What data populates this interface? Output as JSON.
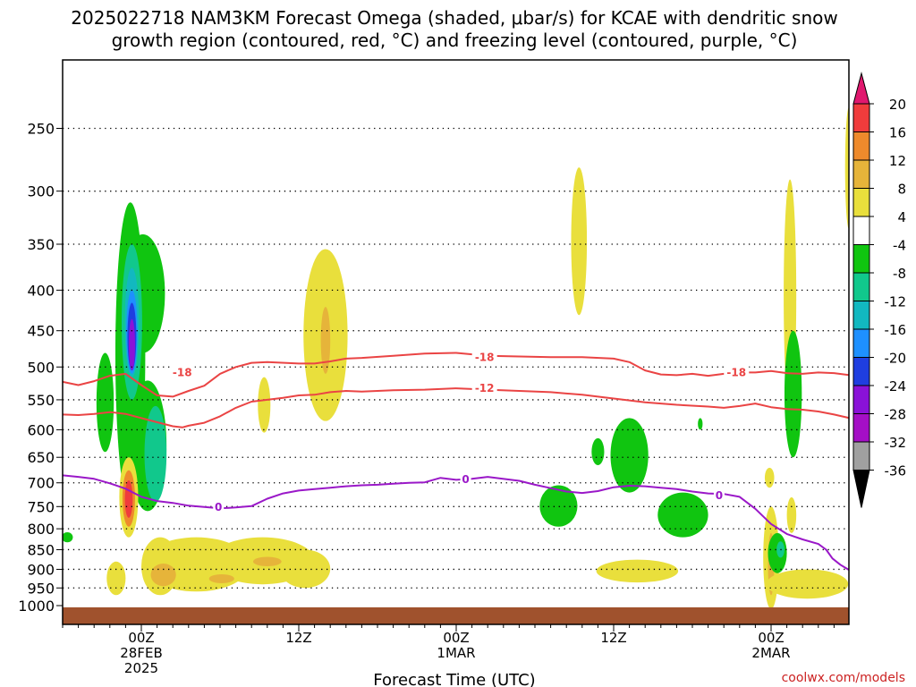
{
  "title_line1": "2025022718 NAM3KM Forecast Omega (shaded, μbar/s) for KCAE with dendritic snow",
  "title_line2": "growth region (contoured, red, °C) and freezing level (contoured, purple, °C)",
  "xlabel": "Forecast Time (UTC)",
  "watermark": "coolwx.com/models",
  "chart_data": {
    "type": "heatmap",
    "x_range_hours": [
      -5,
      45
    ],
    "y_axis": {
      "ticks": [
        250,
        300,
        350,
        400,
        450,
        500,
        550,
        600,
        650,
        700,
        750,
        800,
        850,
        900,
        950,
        1000
      ],
      "ylim": [
        1050,
        190
      ],
      "grid": true
    },
    "x_ticks": [
      {
        "h": 0,
        "lines": [
          "00Z",
          "28FEB",
          "2025"
        ]
      },
      {
        "h": 10,
        "lines": [
          "12Z"
        ]
      },
      {
        "h": 20,
        "lines": [
          "00Z",
          "1MAR"
        ]
      },
      {
        "h": 30,
        "lines": [
          "12Z"
        ]
      },
      {
        "h": 40,
        "lines": [
          "00Z",
          "2MAR"
        ]
      }
    ],
    "colorbar": {
      "levels": [
        "20",
        "16",
        "12",
        "8",
        "4",
        "-4",
        "-8",
        "-12",
        "-16",
        "-20",
        "-24",
        "-28",
        "-32",
        "-36"
      ],
      "colors": [
        "#e0186e",
        "#f03c3c",
        "#ee8a2c",
        "#e6b43a",
        "#e9df3c",
        "#ffffff",
        "#10c510",
        "#11c88c",
        "#12b8c0",
        "#1e90ff",
        "#1f3ee0",
        "#8a12d8",
        "#a40fc6",
        "#a0a0a0",
        "#000000"
      ]
    },
    "contours": [
      {
        "name": "-18",
        "color": "#ea4444",
        "label": "-18",
        "label_at": [
          [
            2.6,
            508
          ],
          [
            21.8,
            486
          ],
          [
            37.8,
            508
          ]
        ],
        "points": [
          [
            -5,
            522
          ],
          [
            -4,
            527
          ],
          [
            -3,
            521
          ],
          [
            -2,
            513
          ],
          [
            -1,
            510
          ],
          [
            0,
            527
          ],
          [
            1,
            543
          ],
          [
            2,
            545
          ],
          [
            3,
            536
          ],
          [
            4,
            528
          ],
          [
            5,
            510
          ],
          [
            6,
            500
          ],
          [
            7,
            494
          ],
          [
            8,
            493
          ],
          [
            10,
            495
          ],
          [
            11,
            495
          ],
          [
            12,
            492
          ],
          [
            13,
            488
          ],
          [
            14,
            487
          ],
          [
            16,
            484
          ],
          [
            18,
            481
          ],
          [
            20,
            480
          ],
          [
            21,
            482
          ],
          [
            22,
            484
          ],
          [
            24,
            485
          ],
          [
            26,
            486
          ],
          [
            28,
            486
          ],
          [
            30,
            488
          ],
          [
            31,
            493
          ],
          [
            32,
            505
          ],
          [
            33,
            511
          ],
          [
            34,
            512
          ],
          [
            35,
            510
          ],
          [
            36,
            513
          ],
          [
            37,
            510
          ],
          [
            38,
            508
          ],
          [
            39,
            508
          ],
          [
            40,
            506
          ],
          [
            41,
            509
          ],
          [
            42,
            510
          ],
          [
            43,
            508
          ],
          [
            44,
            509
          ],
          [
            45,
            512
          ]
        ]
      },
      {
        "name": "-12",
        "color": "#ea4444",
        "label": "-12",
        "label_at": [
          [
            21.8,
            532
          ]
        ],
        "points": [
          [
            -5,
            574
          ],
          [
            -4,
            575
          ],
          [
            -3,
            573
          ],
          [
            -2,
            570
          ],
          [
            -1,
            573
          ],
          [
            0,
            580
          ],
          [
            1,
            587
          ],
          [
            2,
            594
          ],
          [
            2.6,
            596
          ],
          [
            3,
            593
          ],
          [
            4,
            588
          ],
          [
            5,
            577
          ],
          [
            6,
            563
          ],
          [
            7,
            553
          ],
          [
            8,
            550
          ],
          [
            9,
            547
          ],
          [
            10,
            543
          ],
          [
            11,
            542
          ],
          [
            12,
            538
          ],
          [
            13,
            536
          ],
          [
            14,
            537
          ],
          [
            16,
            535
          ],
          [
            18,
            534
          ],
          [
            20,
            532
          ],
          [
            22,
            534
          ],
          [
            24,
            536
          ],
          [
            26,
            538
          ],
          [
            28,
            542
          ],
          [
            30,
            548
          ],
          [
            32,
            554
          ],
          [
            34,
            558
          ],
          [
            36,
            561
          ],
          [
            37,
            563
          ],
          [
            38,
            560
          ],
          [
            39,
            556
          ],
          [
            40,
            562
          ],
          [
            41,
            565
          ],
          [
            42,
            566
          ],
          [
            43,
            569
          ],
          [
            44,
            574
          ],
          [
            45,
            580
          ]
        ]
      },
      {
        "name": "0",
        "color": "#9a18c8",
        "label": "0",
        "label_at": [
          [
            4.9,
            751
          ],
          [
            20.6,
            693
          ],
          [
            36.7,
            726
          ]
        ],
        "points": [
          [
            -5,
            685
          ],
          [
            -4,
            688
          ],
          [
            -3,
            692
          ],
          [
            -2,
            701
          ],
          [
            -1,
            712
          ],
          [
            0,
            729
          ],
          [
            1,
            738
          ],
          [
            2,
            742
          ],
          [
            3,
            748
          ],
          [
            4,
            751
          ],
          [
            5,
            754
          ],
          [
            6,
            752
          ],
          [
            7,
            749
          ],
          [
            8,
            733
          ],
          [
            9,
            722
          ],
          [
            10,
            716
          ],
          [
            11,
            713
          ],
          [
            12,
            710
          ],
          [
            13,
            707
          ],
          [
            14,
            705
          ],
          [
            15,
            704
          ],
          [
            16,
            702
          ],
          [
            17,
            700
          ],
          [
            18,
            699
          ],
          [
            19,
            690
          ],
          [
            20,
            694
          ],
          [
            21,
            692
          ],
          [
            22,
            688
          ],
          [
            24,
            696
          ],
          [
            25,
            704
          ],
          [
            26,
            711
          ],
          [
            27,
            718
          ],
          [
            28,
            721
          ],
          [
            29,
            717
          ],
          [
            30,
            709
          ],
          [
            31,
            706
          ],
          [
            32,
            707
          ],
          [
            33,
            710
          ],
          [
            34,
            713
          ],
          [
            35,
            718
          ],
          [
            36,
            722
          ],
          [
            37,
            723
          ],
          [
            38,
            729
          ],
          [
            39,
            755
          ],
          [
            40,
            789
          ],
          [
            41,
            812
          ],
          [
            42,
            825
          ],
          [
            43,
            836
          ],
          [
            43.5,
            850
          ],
          [
            43.9,
            872
          ],
          [
            44.4,
            888
          ],
          [
            45,
            903
          ]
        ]
      }
    ],
    "omega_regions": [
      {
        "color": "#e9df3c",
        "cx": 3.5,
        "cy": 890,
        "rx": 3.4,
        "ry": 70
      },
      {
        "color": "#e9df3c",
        "cx": 7.7,
        "cy": 880,
        "rx": 3.3,
        "ry": 60
      },
      {
        "color": "#e9df3c",
        "cx": 1.2,
        "cy": 895,
        "rx": 1.2,
        "ry": 75
      },
      {
        "color": "#e9df3c",
        "cx": 10.4,
        "cy": 900,
        "rx": 1.6,
        "ry": 50
      },
      {
        "color": "#e6b43a",
        "cx": 1.4,
        "cy": 915,
        "rx": 0.8,
        "ry": 30
      },
      {
        "color": "#e6b43a",
        "cx": 8.0,
        "cy": 880,
        "rx": 0.9,
        "ry": 12
      },
      {
        "color": "#e6b43a",
        "cx": 5.1,
        "cy": 925,
        "rx": 0.8,
        "ry": 12
      },
      {
        "color": "#e9df3c",
        "cx": -1.6,
        "cy": 925,
        "rx": 0.6,
        "ry": 45
      },
      {
        "color": "#e9df3c",
        "cx": 11.7,
        "cy": 470,
        "rx": 1.4,
        "ry": 115
      },
      {
        "color": "#e6b43a",
        "cx": 11.7,
        "cy": 465,
        "rx": 0.3,
        "ry": 45
      },
      {
        "color": "#e9df3c",
        "cx": 7.8,
        "cy": 560,
        "rx": 0.4,
        "ry": 45
      },
      {
        "color": "#e9df3c",
        "cx": 27.8,
        "cy": 355,
        "rx": 0.5,
        "ry": 75
      },
      {
        "color": "#e9df3c",
        "cx": 31.5,
        "cy": 905,
        "rx": 2.6,
        "ry": 30
      },
      {
        "color": "#e9df3c",
        "cx": 40.0,
        "cy": 880,
        "rx": 0.5,
        "ry": 130
      },
      {
        "color": "#e6b43a",
        "cx": 40.0,
        "cy": 890,
        "rx": 0.2,
        "ry": 80
      },
      {
        "color": "#e9df3c",
        "cx": 42.3,
        "cy": 940,
        "rx": 2.6,
        "ry": 40
      },
      {
        "color": "#e9df3c",
        "cx": 41.2,
        "cy": 430,
        "rx": 0.4,
        "ry": 140
      },
      {
        "color": "#e6b43a",
        "cx": 41.2,
        "cy": 560,
        "rx": 0.2,
        "ry": 45
      },
      {
        "color": "#e9df3c",
        "cx": 44.95,
        "cy": 285,
        "rx": 0.25,
        "ry": 50
      },
      {
        "color": "#e9df3c",
        "cx": 39.9,
        "cy": 690,
        "rx": 0.3,
        "ry": 20
      },
      {
        "color": "#e9df3c",
        "cx": 41.3,
        "cy": 770,
        "rx": 0.3,
        "ry": 40
      },
      {
        "color": "#10c510",
        "cx": -0.7,
        "cy": 530,
        "rx": 0.95,
        "ry": 220
      },
      {
        "color": "#10c510",
        "cx": 0.4,
        "cy": 640,
        "rx": 1.2,
        "ry": 120
      },
      {
        "color": "#10c510",
        "cx": -2.3,
        "cy": 560,
        "rx": 0.55,
        "ry": 80
      },
      {
        "color": "#10c510",
        "cx": 0.1,
        "cy": 410,
        "rx": 1.4,
        "ry": 70
      },
      {
        "color": "#10c510",
        "cx": -4.7,
        "cy": 820,
        "rx": 0.35,
        "ry": 12
      },
      {
        "color": "#10c510",
        "cx": 26.5,
        "cy": 750,
        "rx": 1.2,
        "ry": 45
      },
      {
        "color": "#10c510",
        "cx": 31.0,
        "cy": 650,
        "rx": 1.2,
        "ry": 70
      },
      {
        "color": "#10c510",
        "cx": 34.4,
        "cy": 770,
        "rx": 1.6,
        "ry": 50
      },
      {
        "color": "#10c510",
        "cx": 41.4,
        "cy": 550,
        "rx": 0.55,
        "ry": 100
      },
      {
        "color": "#10c510",
        "cx": 40.4,
        "cy": 860,
        "rx": 0.6,
        "ry": 50
      },
      {
        "color": "#10c510",
        "cx": 29.0,
        "cy": 640,
        "rx": 0.4,
        "ry": 25
      },
      {
        "color": "#10c510",
        "cx": 35.5,
        "cy": 590,
        "rx": 0.15,
        "ry": 10
      },
      {
        "color": "#11c88c",
        "cx": 0.9,
        "cy": 650,
        "rx": 0.7,
        "ry": 90
      },
      {
        "color": "#11c88c",
        "cx": -0.6,
        "cy": 450,
        "rx": 0.65,
        "ry": 100
      },
      {
        "color": "#11c88c",
        "cx": 40.6,
        "cy": 850,
        "rx": 0.25,
        "ry": 20
      },
      {
        "color": "#12b8c0",
        "cx": -0.6,
        "cy": 445,
        "rx": 0.45,
        "ry": 70
      },
      {
        "color": "#1e90ff",
        "cx": -0.6,
        "cy": 455,
        "rx": 0.35,
        "ry": 55
      },
      {
        "color": "#1f3ee0",
        "cx": -0.6,
        "cy": 460,
        "rx": 0.28,
        "ry": 45
      },
      {
        "color": "#8a12d8",
        "cx": -0.6,
        "cy": 470,
        "rx": 0.2,
        "ry": 35
      },
      {
        "color": "#e9df3c",
        "cx": -0.8,
        "cy": 735,
        "rx": 0.6,
        "ry": 85
      },
      {
        "color": "#ee8a2c",
        "cx": -0.8,
        "cy": 735,
        "rx": 0.4,
        "ry": 60
      },
      {
        "color": "#f03c3c",
        "cx": -0.8,
        "cy": 735,
        "rx": 0.25,
        "ry": 40
      }
    ],
    "ground": {
      "color": "#a0522d",
      "from_hpa": 1005
    }
  }
}
